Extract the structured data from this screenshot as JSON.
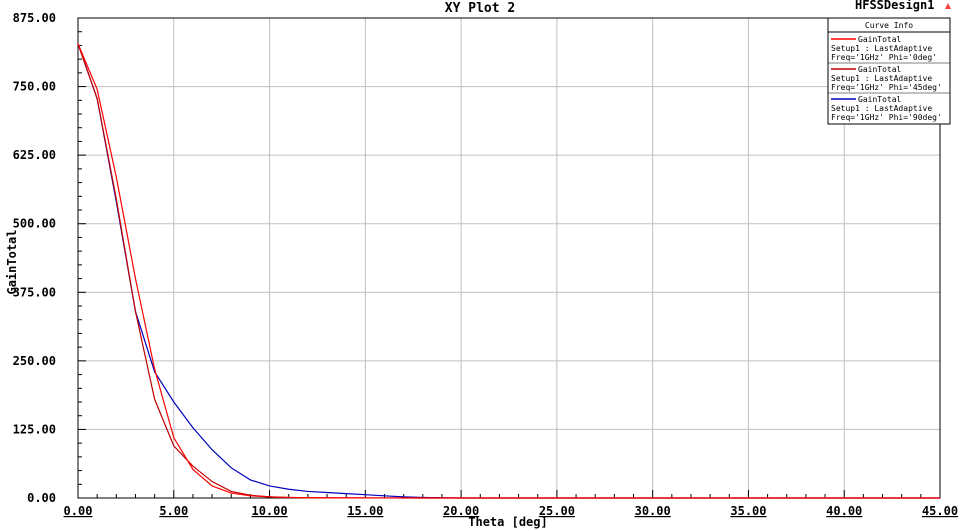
{
  "design_name": "HFSSDesign1",
  "legend": {
    "header": "Curve Info"
  },
  "colors": {
    "grid": "#c0c0c0",
    "series_phi0": "#ff0000",
    "series_phi45": "#c00000",
    "series_phi90": "#0000c0"
  },
  "chart_data": {
    "type": "line",
    "title": "XY Plot 2",
    "xlabel": "Theta [deg]",
    "ylabel": "GainTotal",
    "xlim": [
      0,
      45
    ],
    "ylim": [
      0,
      875
    ],
    "xticks": [
      0,
      5,
      10,
      15,
      20,
      25,
      30,
      35,
      40,
      45
    ],
    "xtick_labels": [
      "0.00",
      "5.00",
      "10.00",
      "15.00",
      "20.00",
      "25.00",
      "30.00",
      "35.00",
      "40.00",
      "45.00"
    ],
    "yticks": [
      0,
      125,
      250,
      375,
      500,
      625,
      750,
      875
    ],
    "ytick_labels": [
      "0.00",
      "125.00",
      "250.00",
      "375.00",
      "500.00",
      "625.00",
      "750.00",
      "875.00"
    ],
    "grid": true,
    "legend_position": "top-right",
    "series": [
      {
        "name": "GainTotal",
        "info1": "Setup1 : LastAdaptive",
        "info2": "Freq='1GHz' Phi='0deg'",
        "x": [
          0,
          1,
          2,
          3,
          4,
          5,
          6,
          7,
          8,
          9,
          10,
          11,
          12,
          14,
          16,
          18,
          20,
          25,
          30,
          35,
          40,
          45
        ],
        "y": [
          828,
          745,
          585,
          400,
          235,
          110,
          52,
          22,
          9,
          4,
          2,
          1,
          0.5,
          0.2,
          0.1,
          0,
          0,
          0,
          0,
          0,
          0,
          0
        ]
      },
      {
        "name": "GainTotal",
        "info1": "Setup1 : LastAdaptive",
        "info2": "Freq='1GHz' Phi='45deg'",
        "x": [
          0,
          1,
          2,
          3,
          4,
          5,
          6,
          7,
          8,
          9,
          10,
          11,
          12,
          14,
          16,
          18,
          20,
          25,
          30,
          35,
          40,
          45
        ],
        "y": [
          828,
          728,
          545,
          340,
          180,
          95,
          58,
          30,
          12,
          5,
          2,
          1,
          0.5,
          0.2,
          0.1,
          0,
          0,
          0,
          0,
          0,
          0,
          0
        ]
      },
      {
        "name": "GainTotal",
        "info1": "Setup1 : LastAdaptive",
        "info2": "Freq='1GHz' Phi='90deg'",
        "x": [
          0,
          1,
          2,
          3,
          4,
          5,
          6,
          7,
          8,
          9,
          10,
          11,
          12,
          13,
          14,
          15,
          16,
          17,
          18,
          20,
          25,
          30,
          35,
          40,
          45
        ],
        "y": [
          828,
          728,
          540,
          340,
          230,
          175,
          128,
          88,
          55,
          33,
          22,
          16,
          12,
          10,
          8,
          6,
          4,
          2,
          1,
          0,
          0,
          0,
          0,
          0,
          0
        ]
      }
    ]
  }
}
